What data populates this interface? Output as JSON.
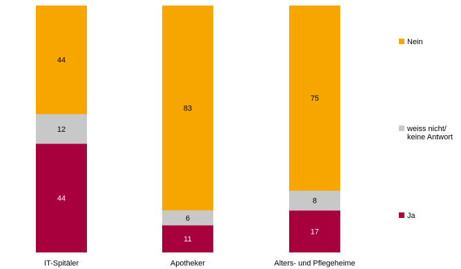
{
  "chart_data": {
    "type": "bar",
    "stacked": true,
    "percent": true,
    "categories": [
      "IT-Spitäler",
      "Apotheker",
      "Alters- und Pflegeheime"
    ],
    "series": [
      {
        "name": "Ja",
        "color": "#a8003c",
        "label_color": "#ffffff",
        "values": [
          44,
          11,
          17
        ]
      },
      {
        "name": "weiss nicht/\nkeine Antwort",
        "color": "#c8c8c8",
        "label_color": "#000000",
        "values": [
          12,
          6,
          8
        ]
      },
      {
        "name": "Nein",
        "color": "#f7a600",
        "label_color": "#000000",
        "values": [
          44,
          83,
          75
        ]
      }
    ],
    "ylim": [
      0,
      100
    ],
    "grid": false,
    "legend_position": "right"
  }
}
